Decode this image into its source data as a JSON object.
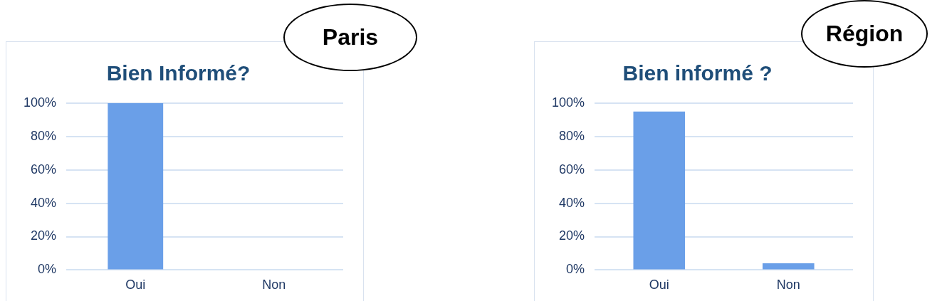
{
  "chart_data": [
    {
      "type": "bar",
      "title": "Bien Informé?",
      "subtitle": "Paris",
      "categories": [
        "Oui",
        "Non"
      ],
      "values": [
        100,
        0
      ],
      "color": "#6a9fe8",
      "ylim": [
        0,
        100
      ],
      "yticks": [
        {
          "value": 0,
          "label": "0%"
        },
        {
          "value": 20,
          "label": "20%"
        },
        {
          "value": 40,
          "label": "40%"
        },
        {
          "value": 60,
          "label": "60%"
        },
        {
          "value": 80,
          "label": "80%"
        },
        {
          "value": 100,
          "label": "100%"
        }
      ],
      "grid": "y",
      "legend": false
    },
    {
      "type": "bar",
      "title": "Bien informé ?",
      "subtitle": "Région",
      "categories": [
        "Oui",
        "Non"
      ],
      "values": [
        95,
        4
      ],
      "color": "#6a9fe8",
      "ylim": [
        0,
        100
      ],
      "yticks": [
        {
          "value": 0,
          "label": "0%"
        },
        {
          "value": 20,
          "label": "20%"
        },
        {
          "value": 40,
          "label": "40%"
        },
        {
          "value": 60,
          "label": "60%"
        },
        {
          "value": 80,
          "label": "80%"
        },
        {
          "value": 100,
          "label": "100%"
        }
      ],
      "grid": "y",
      "legend": false
    }
  ]
}
